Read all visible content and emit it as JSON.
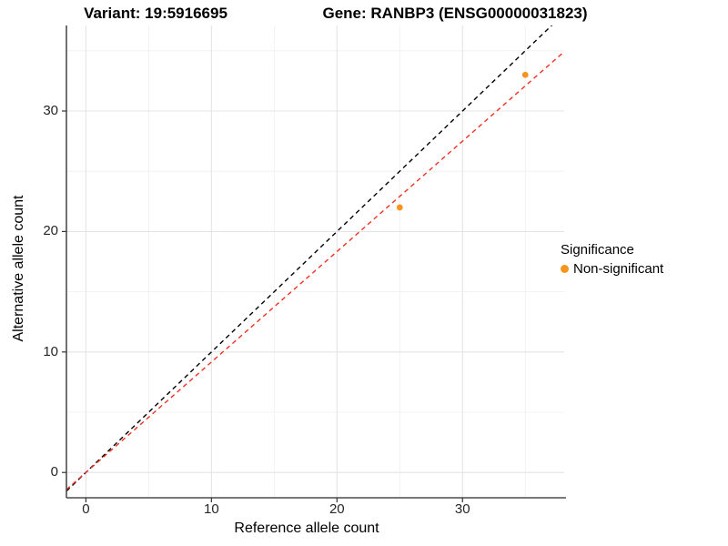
{
  "chart_data": {
    "type": "scatter",
    "title_left": "Variant: 19:5916695",
    "title_right": "Gene: RANBP3 (ENSG00000031823)",
    "xlabel": "Reference allele count",
    "ylabel": "Alternative allele count",
    "x_ticks": [
      0,
      10,
      20,
      30
    ],
    "y_ticks": [
      0,
      10,
      20,
      30
    ],
    "x_minor_ticks": [
      5,
      15,
      25,
      35
    ],
    "y_minor_ticks": [
      5,
      15,
      25,
      35
    ],
    "xlim": [
      -1.55,
      38.1
    ],
    "ylim": [
      -2.1,
      37.1
    ],
    "grid": true,
    "points": [
      {
        "x": 25,
        "y": 22,
        "series": "Non-significant"
      },
      {
        "x": 35,
        "y": 33,
        "series": "Non-significant"
      }
    ],
    "lines": [
      {
        "name": "identity-line",
        "slope": 1.0,
        "intercept": 0,
        "color": "#000000",
        "style": "dashed"
      },
      {
        "name": "expected-ratio-line",
        "slope": 0.9167,
        "intercept": 0,
        "color": "#EE3124",
        "style": "dashed"
      }
    ],
    "point_color": "#F7941E",
    "colors": {
      "grid_major": "#E4E4E4",
      "grid_minor": "#EFEFEF",
      "axis_line": "#4D4D4D",
      "tick_mark": "#333333"
    },
    "legend": {
      "position": "right",
      "title": "Significance",
      "items": [
        {
          "label": "Non-significant",
          "color": "#F7941E"
        }
      ]
    }
  }
}
